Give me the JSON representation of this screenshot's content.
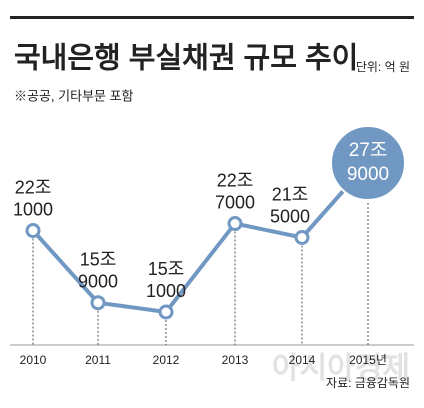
{
  "chart_data": {
    "type": "line",
    "title": "국내은행 부실채권 규모 추이",
    "unit": "단위: 억 원",
    "subtitle": "※공공, 기타부문 포함",
    "source": "자료: 금융감독원",
    "watermark": "아시아경제",
    "categories": [
      "2010",
      "2011",
      "2012",
      "2013",
      "2014",
      "2015년"
    ],
    "values": [
      221000,
      159000,
      151000,
      227000,
      215000,
      279000
    ],
    "value_labels": [
      [
        "22조",
        "1000"
      ],
      [
        "15조",
        "9000"
      ],
      [
        "15조",
        "1000"
      ],
      [
        "22조",
        "7000"
      ],
      [
        "21조",
        "5000"
      ],
      [
        "27조",
        "9000"
      ]
    ],
    "color": "#7098c2"
  }
}
